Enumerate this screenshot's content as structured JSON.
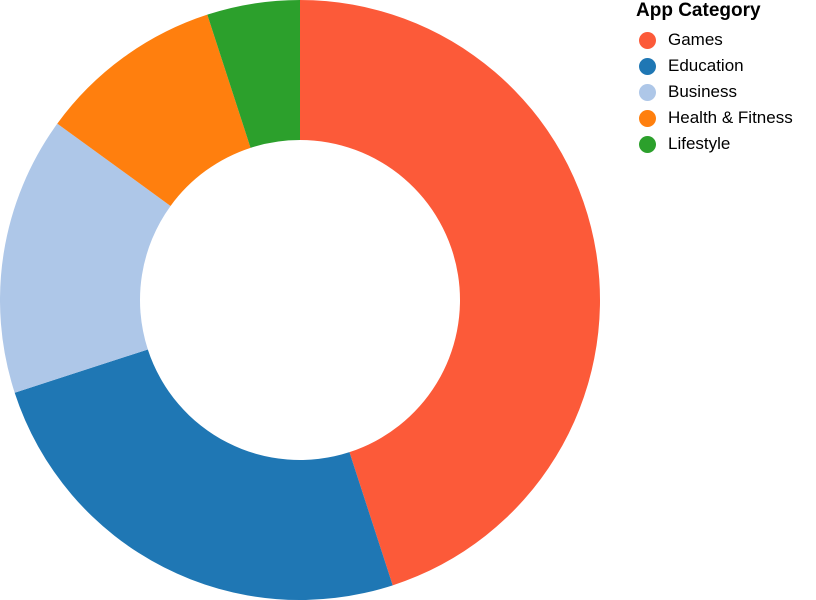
{
  "chart_data": {
    "type": "pie",
    "variant": "donut",
    "legend_title": "App Category",
    "legend_position": "top-right",
    "slices": [
      {
        "label": "Games",
        "value": 45,
        "color": "#fc5a39"
      },
      {
        "label": "Education",
        "value": 25,
        "color": "#1f77b4"
      },
      {
        "label": "Business",
        "value": 15,
        "color": "#aec7e8"
      },
      {
        "label": "Health & Fitness",
        "value": 10,
        "color": "#ff7f0e"
      },
      {
        "label": "Lifestyle",
        "value": 5,
        "color": "#2ca02c"
      }
    ]
  }
}
